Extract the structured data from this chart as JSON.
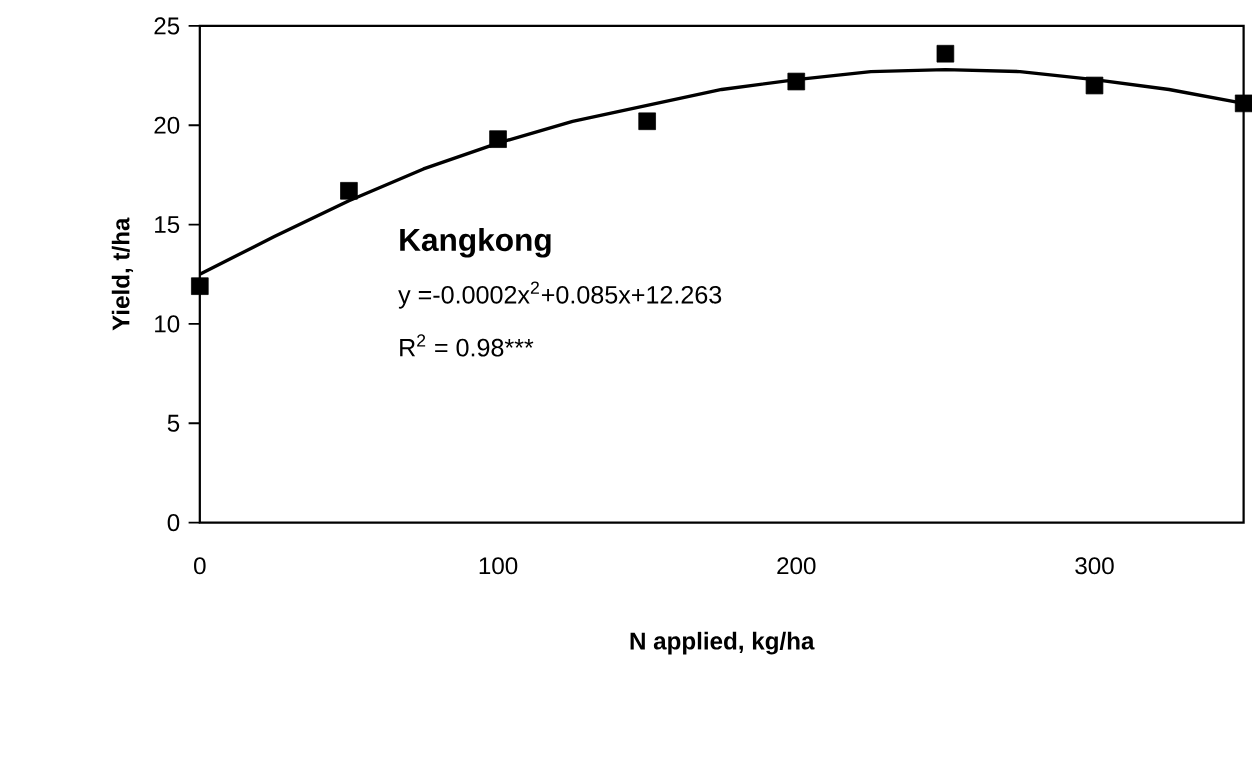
{
  "chart_data": {
    "type": "scatter",
    "xlabel": "N applied, kg/ha",
    "ylabel": "Yield,  t/ha",
    "xlim": [
      0,
      350
    ],
    "ylim": [
      0,
      25
    ],
    "xticks": [
      0,
      100,
      200,
      300
    ],
    "yticks": [
      0,
      5,
      10,
      15,
      20,
      25
    ],
    "grid": false,
    "annotations": [
      "Kangkong",
      "y =-0.0002x$^{2}$+0.085x+12.263",
      "R$^{2}$ = 0.98***"
    ],
    "series": [
      {
        "marker": "square",
        "color": "#000000",
        "x": [
          0,
          50,
          100,
          150,
          200,
          250,
          300,
          350
        ],
        "values": [
          11.9,
          16.7,
          19.3,
          20.2,
          22.2,
          23.6,
          22.0,
          21.1
        ]
      },
      {
        "type": "line",
        "marker": "none",
        "color": "#000000",
        "x": [
          0,
          25,
          50,
          75,
          100,
          125,
          150,
          175,
          200,
          225,
          250,
          275,
          300,
          325,
          350
        ],
        "values": [
          12.5,
          14.4,
          16.2,
          17.8,
          19.1,
          20.2,
          21.0,
          21.8,
          22.3,
          22.7,
          22.8,
          22.7,
          22.3,
          21.8,
          21.1
        ]
      }
    ]
  }
}
